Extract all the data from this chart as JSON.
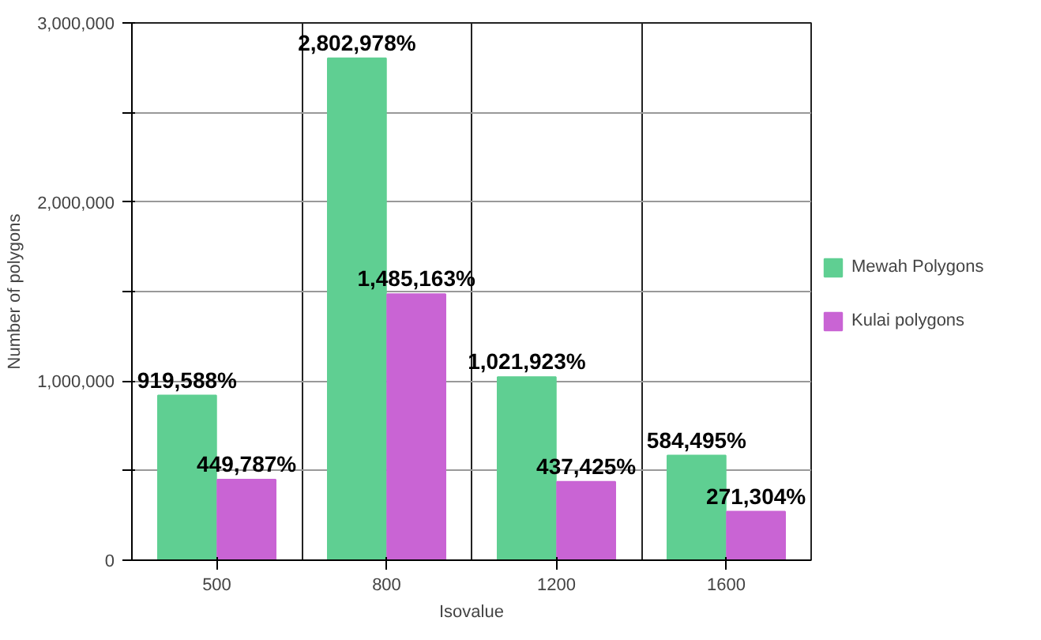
{
  "chart_data": {
    "type": "bar",
    "xlabel": "Isovalue",
    "ylabel": "Number of polygons",
    "categories": [
      "500",
      "800",
      "1200",
      "1600"
    ],
    "series": [
      {
        "name": "Mewah Polygons",
        "color": "#5fcf92",
        "values": [
          919588,
          2802978,
          1021923,
          584495
        ],
        "value_labels": [
          "919,588%",
          "2,802,978%",
          "1,021,923%",
          "584,495%"
        ]
      },
      {
        "name": "Kulai polygons",
        "color": "#c964d4",
        "values": [
          449787,
          1485163,
          437425,
          271304
        ],
        "value_labels": [
          "449,787%",
          "1,485,163%",
          "437,425%",
          "271,304%"
        ]
      }
    ],
    "ylim": [
      0,
      3000000
    ],
    "yticks": [
      0,
      {
        "value": 500000,
        "label": null
      },
      {
        "value": 1000000,
        "label": "1,000,000"
      },
      {
        "value": 1500000,
        "label": null
      },
      {
        "value": 2000000,
        "label": "2,000,000"
      },
      {
        "value": 2500000,
        "label": null
      },
      {
        "value": 3000000,
        "label": "3,000,000"
      }
    ],
    "grid": true,
    "legend": "right"
  }
}
